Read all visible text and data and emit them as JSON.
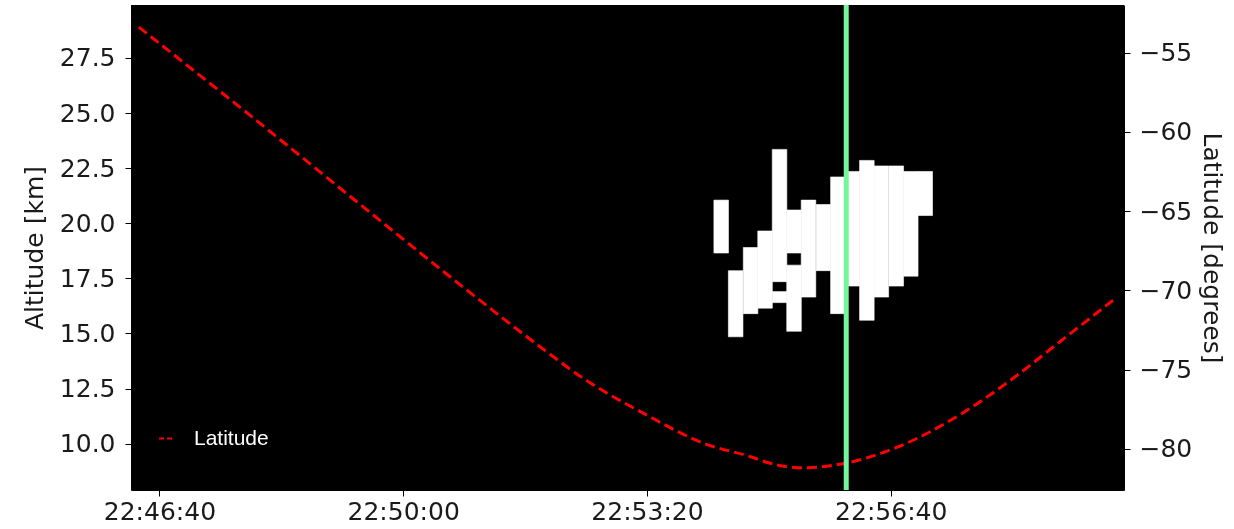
{
  "chart_data": {
    "type": "bar",
    "ylabel": "Altitude [km]",
    "y2label": "Latitude [degrees]",
    "xlim": [
      22.7713,
      22.9976
    ],
    "xticks": [
      {
        "value": 22.777778,
        "label": "22:46:40"
      },
      {
        "value": 22.833333,
        "label": "22:50:00"
      },
      {
        "value": 22.888889,
        "label": "22:53:20"
      },
      {
        "value": 22.944444,
        "label": "22:56:40"
      }
    ],
    "ylim": [
      7.9,
      29.9
    ],
    "yticks": [
      {
        "value": 10,
        "label": "10.0"
      },
      12.5,
      {
        "value": 15,
        "label": "15.0"
      },
      17.5,
      {
        "value": 20,
        "label": "20.0"
      },
      22.5,
      {
        "value": 25,
        "label": "25.0"
      },
      27.5
    ],
    "y2lim": [
      -82.6,
      -52.0
    ],
    "y2ticks": [
      {
        "value": -80,
        "label": "−80"
      },
      {
        "value": -75,
        "label": "−75"
      },
      {
        "value": -70,
        "label": "−70"
      },
      {
        "value": -65,
        "label": "−65"
      },
      {
        "value": -60,
        "label": "−60"
      },
      {
        "value": -55,
        "label": "−55"
      }
    ],
    "series": [
      {
        "color": "#ffffff",
        "x": [
          22.9058,
          22.9091,
          22.9125,
          22.9158,
          22.9191,
          22.9224,
          22.9257,
          22.9291,
          22.9324,
          22.9357,
          22.939,
          22.9423,
          22.9457,
          22.949,
          22.9523
        ],
        "base": [
          18.65,
          14.85,
          15.9,
          16.15,
          17.35,
          15.1,
          16.65,
          17.85,
          15.9,
          17.15,
          15.6,
          16.65,
          17.15,
          17.6,
          20.35
        ],
        "values": [
          2.4,
          3.0,
          3.0,
          3.5,
          6.0,
          3.0,
          4.4,
          3.0,
          6.2,
          5.2,
          7.25,
          5.95,
          5.45,
          4.75,
          2.0
        ]
      },
      {
        "color": "#ffffff",
        "x": [
          22.9191,
          22.9224
        ],
        "base": [
          16.4,
          18.65
        ],
        "values": [
          0.5,
          1.95
        ]
      },
      {
        "type": "line",
        "name": "Latitude",
        "color": "#ff0000",
        "axis": "y2",
        "x": [
          22.7731,
          22.7986,
          22.8236,
          22.8502,
          22.8647,
          22.8746,
          22.8877,
          22.9023,
          22.9125,
          22.9168,
          22.9244,
          22.9343,
          22.9459,
          22.9605,
          22.9721,
          22.9832,
          22.9957
        ],
        "values": [
          -53.4,
          -59.0,
          -64.6,
          -70.5,
          -73.6,
          -75.6,
          -77.7,
          -79.7,
          -80.5,
          -80.9,
          -81.2,
          -80.9,
          -79.9,
          -77.8,
          -75.6,
          -73.2,
          -70.5
        ]
      }
    ],
    "line_style": "dashed",
    "ref_lines": [
      {
        "axis": "x",
        "value": 22.9343,
        "color": "#74f79c"
      }
    ],
    "legend": "bottom left"
  }
}
